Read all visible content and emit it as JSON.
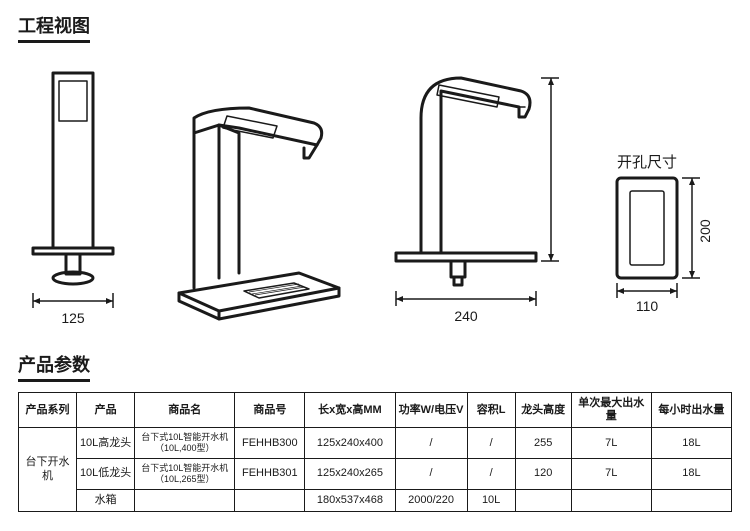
{
  "titles": {
    "engineering_view": "工程视图",
    "product_params": "产品参数",
    "hole_size": "开孔尺寸"
  },
  "dimensions": {
    "front_width": "125",
    "side_base": "240",
    "hole_width": "110",
    "hole_height": "200"
  },
  "table": {
    "headers": [
      "产品系列",
      "产品",
      "商品名",
      "商品号",
      "长x宽x高MM",
      "功率W/电压V",
      "容积L",
      "龙头高度",
      "单次最大出水量",
      "每小时出水量"
    ],
    "series_label": "台下开水机",
    "rows": [
      {
        "product": "10L高龙头",
        "name": "台下式10L智能开水机（10L,400型）",
        "code": "FEHHB300",
        "dims": "125x240x400",
        "power": "/",
        "volume": "/",
        "tap_h": "255",
        "single": "7L",
        "hourly": "18L"
      },
      {
        "product": "10L低龙头",
        "name": "台下式10L智能开水机（10L,265型）",
        "code": "FEHHB301",
        "dims": "125x240x265",
        "power": "/",
        "volume": "/",
        "tap_h": "120",
        "single": "7L",
        "hourly": "18L"
      },
      {
        "product": "水箱",
        "name": "",
        "code": "",
        "dims": "180x537x468",
        "power": "2000/220",
        "volume": "10L",
        "tap_h": "",
        "single": "",
        "hourly": ""
      }
    ]
  },
  "style": {
    "line_color": "#1a1a1a",
    "bg": "#ffffff"
  }
}
